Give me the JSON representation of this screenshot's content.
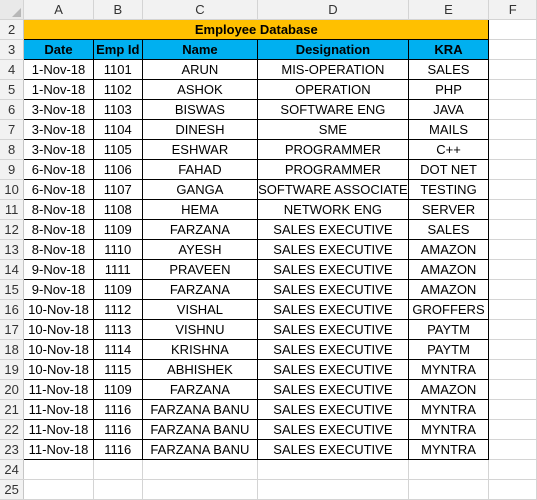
{
  "columns": [
    "A",
    "B",
    "C",
    "D",
    "E",
    "F"
  ],
  "rows": {
    "title_row": "2",
    "header_row": "3",
    "data_rows": [
      "4",
      "5",
      "6",
      "7",
      "8",
      "9",
      "10",
      "11",
      "12",
      "13",
      "14",
      "15",
      "16",
      "17",
      "18",
      "19",
      "20",
      "21",
      "22",
      "23"
    ],
    "trailing": [
      "24",
      "25"
    ]
  },
  "title": "Employee Database",
  "headers": [
    "Date",
    "Emp Id",
    "Name",
    "Designation",
    "KRA"
  ],
  "records": [
    [
      "1-Nov-18",
      "1101",
      "ARUN",
      "MIS-OPERATION",
      "SALES"
    ],
    [
      "1-Nov-18",
      "1102",
      "ASHOK",
      "OPERATION",
      "PHP"
    ],
    [
      "3-Nov-18",
      "1103",
      "BISWAS",
      "SOFTWARE ENG",
      "JAVA"
    ],
    [
      "3-Nov-18",
      "1104",
      "DINESH",
      "SME",
      "MAILS"
    ],
    [
      "3-Nov-18",
      "1105",
      "ESHWAR",
      "PROGRAMMER",
      "C++"
    ],
    [
      "6-Nov-18",
      "1106",
      "FAHAD",
      "PROGRAMMER",
      "DOT NET"
    ],
    [
      "6-Nov-18",
      "1107",
      "GANGA",
      "SOFTWARE ASSOCIATE",
      "TESTING"
    ],
    [
      "8-Nov-18",
      "1108",
      "HEMA",
      "NETWORK ENG",
      "SERVER"
    ],
    [
      "8-Nov-18",
      "1109",
      "FARZANA",
      "SALES EXECUTIVE",
      "SALES"
    ],
    [
      "8-Nov-18",
      "1110",
      "AYESH",
      "SALES EXECUTIVE",
      "AMAZON"
    ],
    [
      "9-Nov-18",
      "1111",
      "PRAVEEN",
      "SALES EXECUTIVE",
      "AMAZON"
    ],
    [
      "9-Nov-18",
      "1109",
      "FARZANA",
      "SALES EXECUTIVE",
      "AMAZON"
    ],
    [
      "10-Nov-18",
      "1112",
      "VISHAL",
      "SALES EXECUTIVE",
      "GROFFERS"
    ],
    [
      "10-Nov-18",
      "1113",
      "VISHNU",
      "SALES EXECUTIVE",
      "PAYTM"
    ],
    [
      "10-Nov-18",
      "1114",
      "KRISHNA",
      "SALES EXECUTIVE",
      "PAYTM"
    ],
    [
      "10-Nov-18",
      "1115",
      "ABHISHEK",
      "SALES EXECUTIVE",
      "MYNTRA"
    ],
    [
      "11-Nov-18",
      "1109",
      "FARZANA",
      "SALES EXECUTIVE",
      "AMAZON"
    ],
    [
      "11-Nov-18",
      "1116",
      "FARZANA BANU",
      "SALES EXECUTIVE",
      "MYNTRA"
    ],
    [
      "11-Nov-18",
      "1116",
      "FARZANA BANU",
      "SALES EXECUTIVE",
      "MYNTRA"
    ],
    [
      "11-Nov-18",
      "1116",
      "FARZANA BANU",
      "SALES EXECUTIVE",
      "MYNTRA"
    ]
  ],
  "colors": {
    "title_fill": "#ffc000",
    "header_fill": "#00b0f0",
    "grid_line": "#d4d4d4",
    "heading_bg": "#f2f2f2"
  },
  "icons": {
    "select_all": "select-all-triangle-icon"
  }
}
